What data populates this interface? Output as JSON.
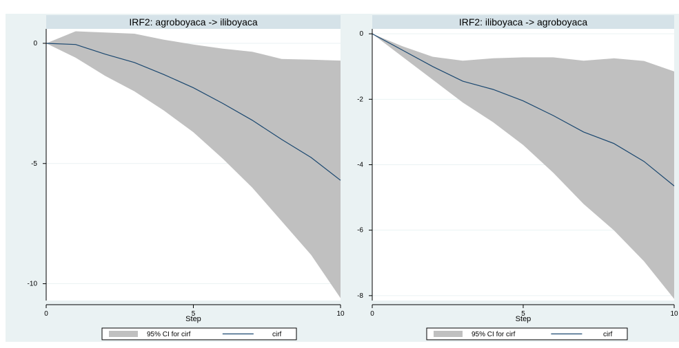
{
  "colors": {
    "outer_bg": "#eaf2f3",
    "plot_bg": "#ffffff",
    "title_bg": "#d5e2e8",
    "ci_fill": "#c0c0c0",
    "line": "#1a476f",
    "gridline": "#eaf2f3"
  },
  "chart_data": [
    {
      "type": "area",
      "title": "IRF2: agroboyaca -> iliboyaca",
      "xlabel": "Step",
      "ylabel": "",
      "xlim": [
        0,
        10
      ],
      "ylim": [
        -10.7,
        0.6
      ],
      "xticks": [
        0,
        5,
        10
      ],
      "yticks": [
        0,
        -5,
        -10
      ],
      "grid": true,
      "legend_position": "bottom",
      "x": [
        0,
        1,
        2,
        3,
        4,
        5,
        6,
        7,
        8,
        9,
        10
      ],
      "series": [
        {
          "name": "cirf",
          "kind": "line",
          "values": [
            0,
            -0.05,
            -0.45,
            -0.8,
            -1.3,
            -1.85,
            -2.5,
            -3.2,
            -4.0,
            -4.75,
            -5.7
          ]
        },
        {
          "name": "95% CI for cirf",
          "kind": "band",
          "lower": [
            0,
            -0.6,
            -1.35,
            -2.0,
            -2.8,
            -3.7,
            -4.8,
            -6.0,
            -7.4,
            -8.8,
            -10.6
          ],
          "upper": [
            0,
            0.5,
            0.45,
            0.4,
            0.15,
            -0.05,
            -0.22,
            -0.35,
            -0.65,
            -0.68,
            -0.72
          ]
        }
      ],
      "legend": [
        {
          "label": "95% CI for cirf",
          "swatch": "band"
        },
        {
          "label": "cirf",
          "swatch": "line"
        }
      ]
    },
    {
      "type": "area",
      "title": "IRF2: iliboyaca -> agroboyaca",
      "xlabel": "Step",
      "ylabel": "",
      "xlim": [
        0,
        10
      ],
      "ylim": [
        -8.15,
        0.15
      ],
      "xticks": [
        0,
        5,
        10
      ],
      "yticks": [
        0,
        -2,
        -4,
        -6,
        -8
      ],
      "grid": true,
      "legend_position": "bottom",
      "x": [
        0,
        1,
        2,
        3,
        4,
        5,
        6,
        7,
        8,
        9,
        10
      ],
      "series": [
        {
          "name": "cirf",
          "kind": "line",
          "values": [
            0,
            -0.5,
            -1.0,
            -1.45,
            -1.7,
            -2.05,
            -2.5,
            -3.0,
            -3.35,
            -3.9,
            -4.65
          ]
        },
        {
          "name": "95% CI for cirf",
          "kind": "band",
          "lower": [
            0,
            -0.7,
            -1.4,
            -2.1,
            -2.7,
            -3.4,
            -4.25,
            -5.2,
            -6.0,
            -6.95,
            -8.1
          ],
          "upper": [
            0,
            -0.38,
            -0.7,
            -0.82,
            -0.75,
            -0.72,
            -0.72,
            -0.82,
            -0.75,
            -0.83,
            -1.15
          ]
        }
      ],
      "legend": [
        {
          "label": "95% CI for cirf",
          "swatch": "band"
        },
        {
          "label": "cirf",
          "swatch": "line"
        }
      ]
    }
  ]
}
